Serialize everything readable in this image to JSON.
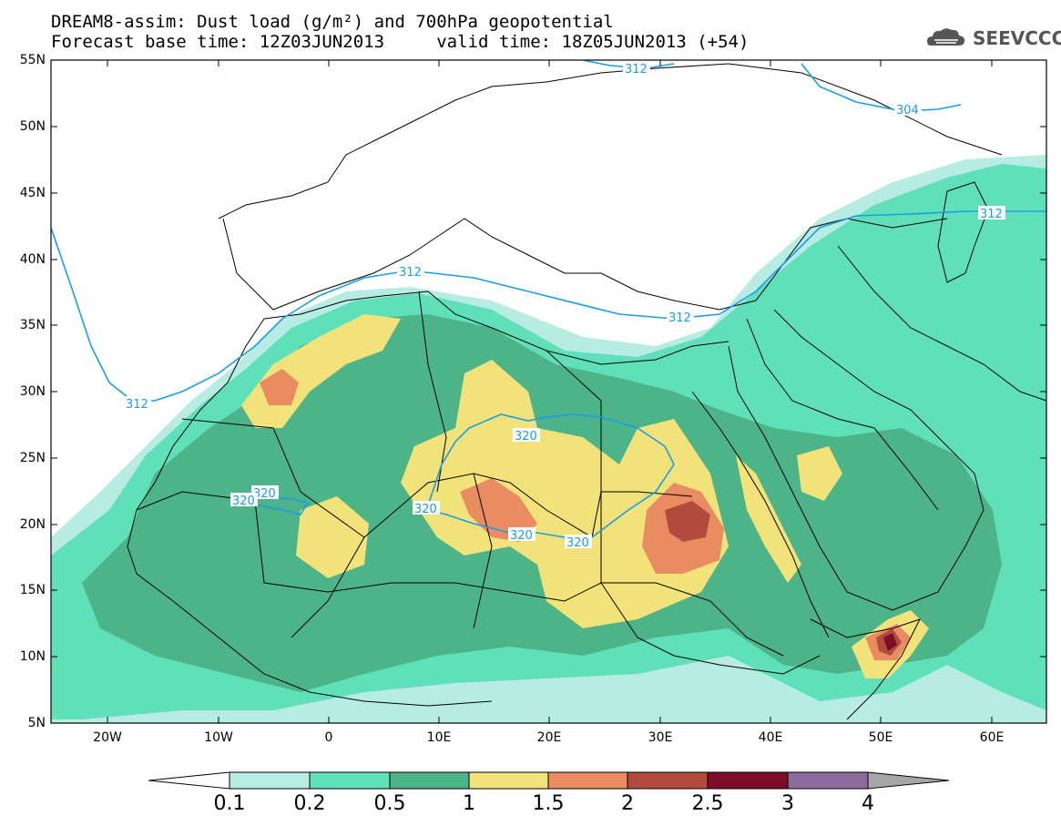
{
  "header": {
    "title_line1": "DREAM8-assim: Dust load (g/m²) and 700hPa geopotential",
    "title_line2": "Forecast base time: 12Z03JUN2013     valid time: 18Z05JUN2013 (+54)",
    "logo_text": "SEEVCCC"
  },
  "axes": {
    "lat_ticks": [
      "55N",
      "50N",
      "45N",
      "40N",
      "35N",
      "30N",
      "25N",
      "20N",
      "15N",
      "10N",
      "5N"
    ],
    "lon_ticks": [
      "20W",
      "10W",
      "0",
      "10E",
      "20E",
      "30E",
      "40E",
      "50E",
      "60E"
    ]
  },
  "contours": {
    "labels": [
      "312",
      "304",
      "312",
      "312",
      "312",
      "312",
      "320",
      "320",
      "320",
      "320",
      "320",
      "320"
    ]
  },
  "colorbar": {
    "labels": [
      "0.1",
      "0.2",
      "0.5",
      "1",
      "1.5",
      "2",
      "2.5",
      "3",
      "4"
    ],
    "colors": [
      "#b7ece3",
      "#5fe0b8",
      "#4db389",
      "#f2e27a",
      "#e98c62",
      "#b24b3e",
      "#7e0d2a",
      "#8c6a9c",
      "#a7a7a7"
    ]
  },
  "colors": {
    "geopotential_contour": "#1a9cea",
    "border": "#000000"
  }
}
